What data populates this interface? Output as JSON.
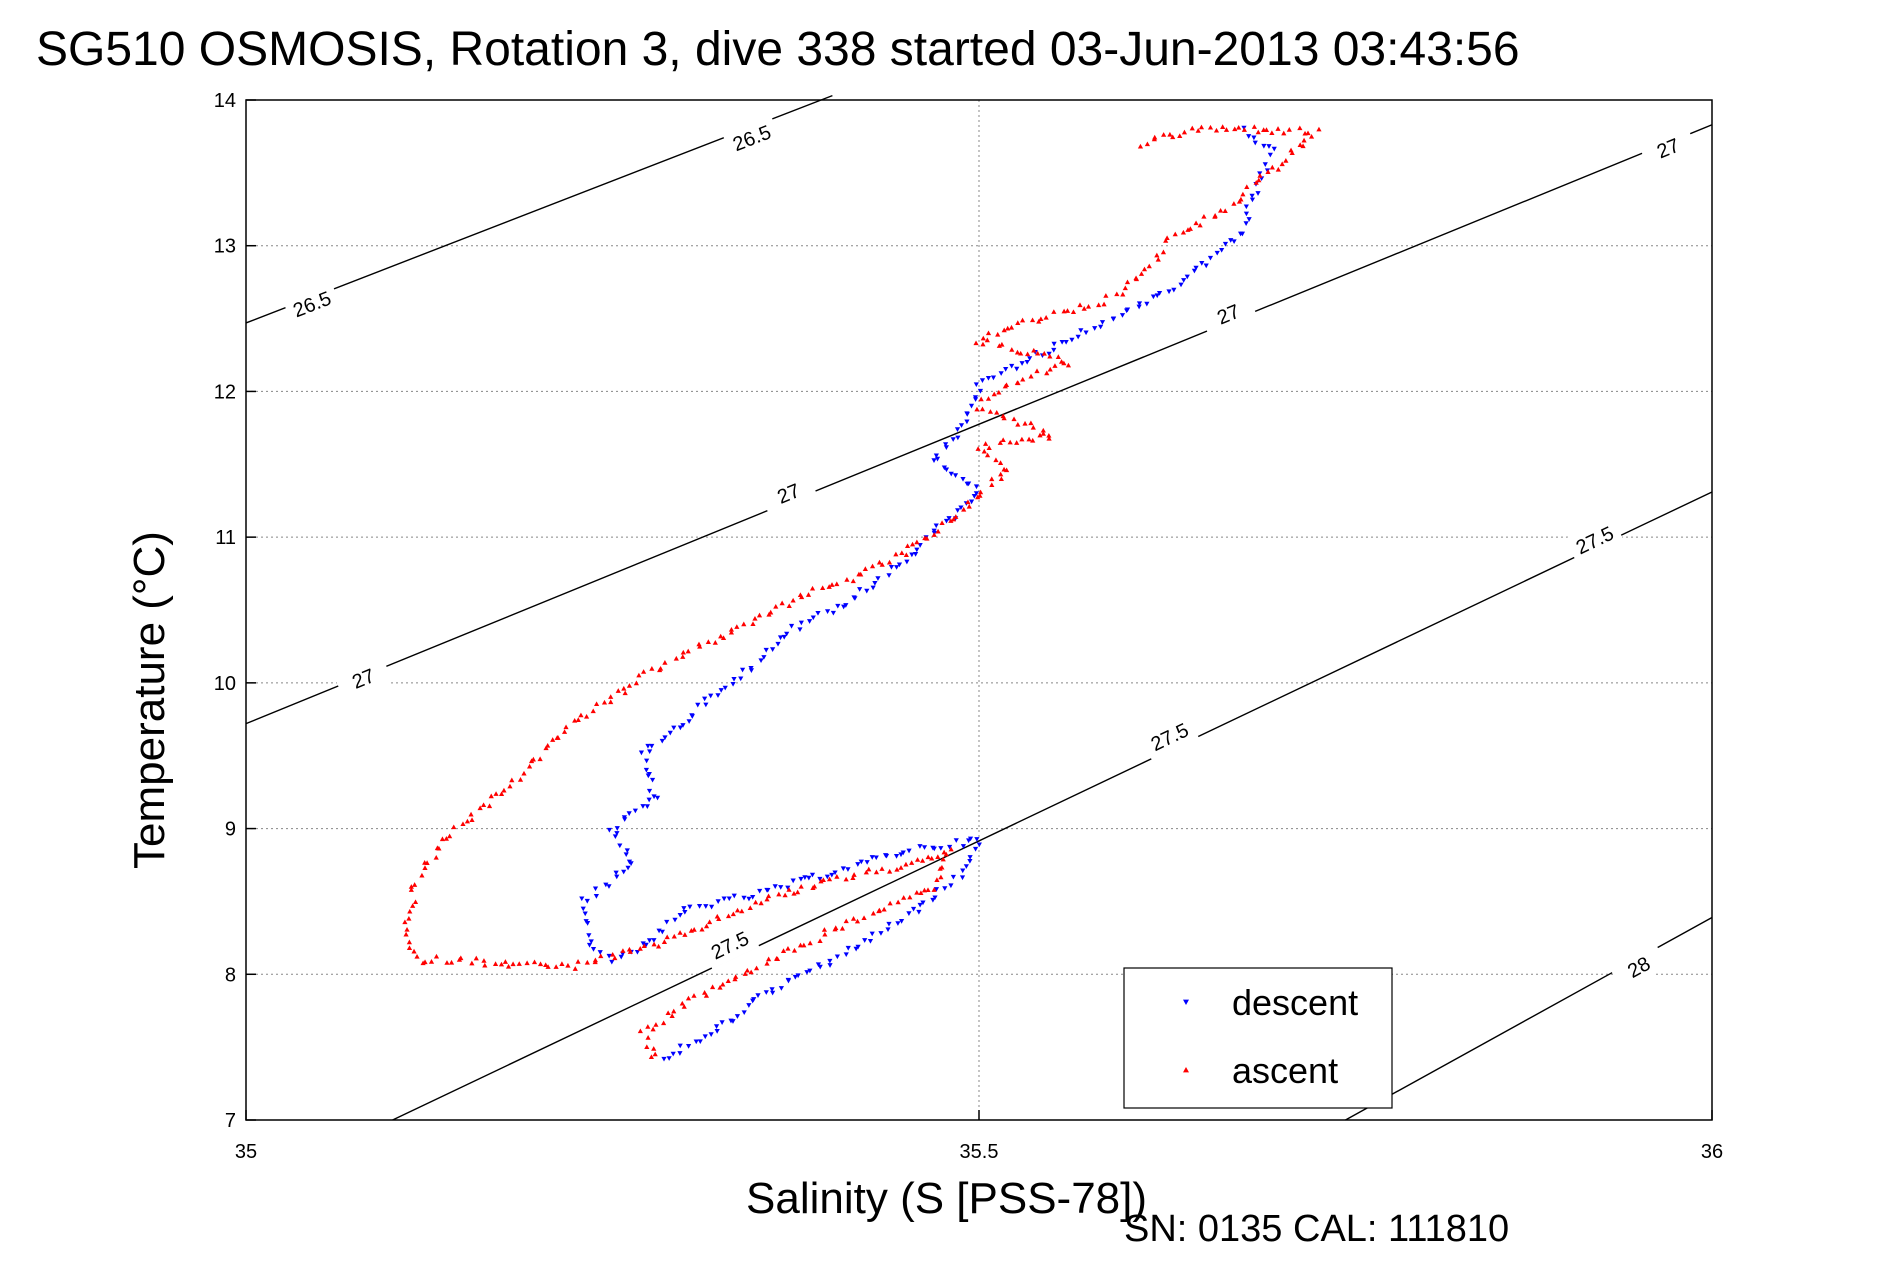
{
  "title": "SG510 OSMOSIS, Rotation 3, dive 338 started 03-Jun-2013 03:43:56",
  "footer": "SN: 0135  CAL: 111810",
  "colors": {
    "descent": "#0000ff",
    "ascent": "#ff0000",
    "contour": "#000000",
    "grid": "#888888"
  },
  "chart_data": {
    "type": "scatter",
    "xlabel": "Salinity (S [PSS-78])",
    "ylabel": "Temperature (°C)",
    "xlim": [
      35,
      36
    ],
    "ylim": [
      7,
      14
    ],
    "xticks": [
      35,
      35.5,
      36
    ],
    "xtick_labels": [
      "35",
      "35.5",
      "36"
    ],
    "yticks": [
      7,
      8,
      9,
      10,
      11,
      12,
      13,
      14
    ],
    "ytick_labels": [
      "7",
      "8",
      "9",
      "10",
      "11",
      "12",
      "13",
      "14"
    ],
    "grid": true,
    "legend": {
      "location": "bottom-right",
      "entries": [
        "descent",
        "ascent"
      ]
    },
    "contours": [
      {
        "level": "26.5",
        "points": [
          [
            35,
            12.47
          ],
          [
            35.4,
            14.03
          ]
        ],
        "labels": [
          [
            35.045,
            12.6
          ],
          [
            35.345,
            13.74
          ]
        ]
      },
      {
        "level": "27",
        "points": [
          [
            35,
            9.72
          ],
          [
            36,
            13.83
          ]
        ],
        "labels": [
          [
            35.08,
            10.03
          ],
          [
            35.37,
            11.3
          ],
          [
            35.67,
            12.53
          ],
          [
            35.97,
            13.67
          ]
        ]
      },
      {
        "level": "27.5",
        "points": [
          [
            35.1,
            7
          ],
          [
            36,
            11.31
          ]
        ],
        "labels": [
          [
            35.33,
            8.2
          ],
          [
            35.63,
            9.63
          ],
          [
            35.92,
            10.98
          ]
        ]
      },
      {
        "level": "28",
        "points": [
          [
            35.75,
            7
          ],
          [
            36,
            8.39
          ]
        ],
        "labels": [
          [
            35.95,
            8.05
          ]
        ]
      }
    ],
    "series": [
      {
        "name": "descent",
        "marker": "triangle-down",
        "path": [
          [
            35.68,
            13.8
          ],
          [
            35.7,
            13.65
          ],
          [
            35.685,
            13.3
          ],
          [
            35.68,
            13.1
          ],
          [
            35.64,
            12.75
          ],
          [
            35.6,
            12.55
          ],
          [
            35.55,
            12.3
          ],
          [
            35.5,
            12.05
          ],
          [
            35.49,
            11.75
          ],
          [
            35.47,
            11.55
          ],
          [
            35.5,
            11.3
          ],
          [
            35.47,
            11.05
          ],
          [
            35.45,
            10.85
          ],
          [
            35.41,
            10.55
          ],
          [
            35.37,
            10.35
          ],
          [
            35.35,
            10.15
          ],
          [
            35.33,
            10.0
          ],
          [
            35.3,
            9.75
          ],
          [
            35.27,
            9.5
          ],
          [
            35.28,
            9.2
          ],
          [
            35.25,
            9.0
          ],
          [
            35.265,
            8.75
          ],
          [
            35.23,
            8.5
          ],
          [
            35.235,
            8.2
          ],
          [
            35.25,
            8.1
          ],
          [
            35.28,
            8.25
          ],
          [
            35.3,
            8.45
          ],
          [
            35.35,
            8.55
          ],
          [
            35.4,
            8.7
          ],
          [
            35.45,
            8.85
          ],
          [
            35.5,
            8.92
          ],
          [
            35.49,
            8.7
          ],
          [
            35.45,
            8.4
          ],
          [
            35.4,
            8.1
          ],
          [
            35.35,
            7.85
          ],
          [
            35.32,
            7.6
          ],
          [
            35.29,
            7.45
          ],
          [
            35.28,
            7.42
          ]
        ]
      },
      {
        "name": "ascent",
        "marker": "triangle-up",
        "path": [
          [
            35.61,
            13.7
          ],
          [
            35.65,
            13.8
          ],
          [
            35.69,
            13.8
          ],
          [
            35.73,
            13.78
          ],
          [
            35.67,
            13.25
          ],
          [
            35.63,
            13.05
          ],
          [
            35.62,
            12.9
          ],
          [
            35.6,
            12.7
          ],
          [
            35.58,
            12.6
          ],
          [
            35.54,
            12.5
          ],
          [
            35.5,
            12.35
          ],
          [
            35.56,
            12.2
          ],
          [
            35.52,
            12.05
          ],
          [
            35.5,
            11.9
          ],
          [
            35.55,
            11.7
          ],
          [
            35.5,
            11.62
          ],
          [
            35.52,
            11.45
          ],
          [
            35.5,
            11.3
          ],
          [
            35.48,
            11.1
          ],
          [
            35.45,
            10.9
          ],
          [
            35.42,
            10.75
          ],
          [
            35.38,
            10.6
          ],
          [
            35.34,
            10.4
          ],
          [
            35.3,
            10.2
          ],
          [
            35.28,
            10.1
          ],
          [
            35.25,
            9.9
          ],
          [
            35.22,
            9.7
          ],
          [
            35.2,
            9.5
          ],
          [
            35.18,
            9.3
          ],
          [
            35.155,
            9.1
          ],
          [
            35.13,
            8.85
          ],
          [
            35.115,
            8.6
          ],
          [
            35.11,
            8.3
          ],
          [
            35.115,
            8.1
          ],
          [
            35.14,
            8.1
          ],
          [
            35.22,
            8.05
          ],
          [
            35.28,
            8.2
          ],
          [
            35.35,
            8.5
          ],
          [
            35.4,
            8.65
          ],
          [
            35.45,
            8.75
          ],
          [
            35.48,
            8.85
          ],
          [
            35.47,
            8.6
          ],
          [
            35.4,
            8.3
          ],
          [
            35.35,
            8.05
          ],
          [
            35.3,
            7.8
          ],
          [
            35.27,
            7.6
          ],
          [
            35.28,
            7.45
          ],
          [
            35.27,
            7.43
          ]
        ]
      }
    ]
  }
}
